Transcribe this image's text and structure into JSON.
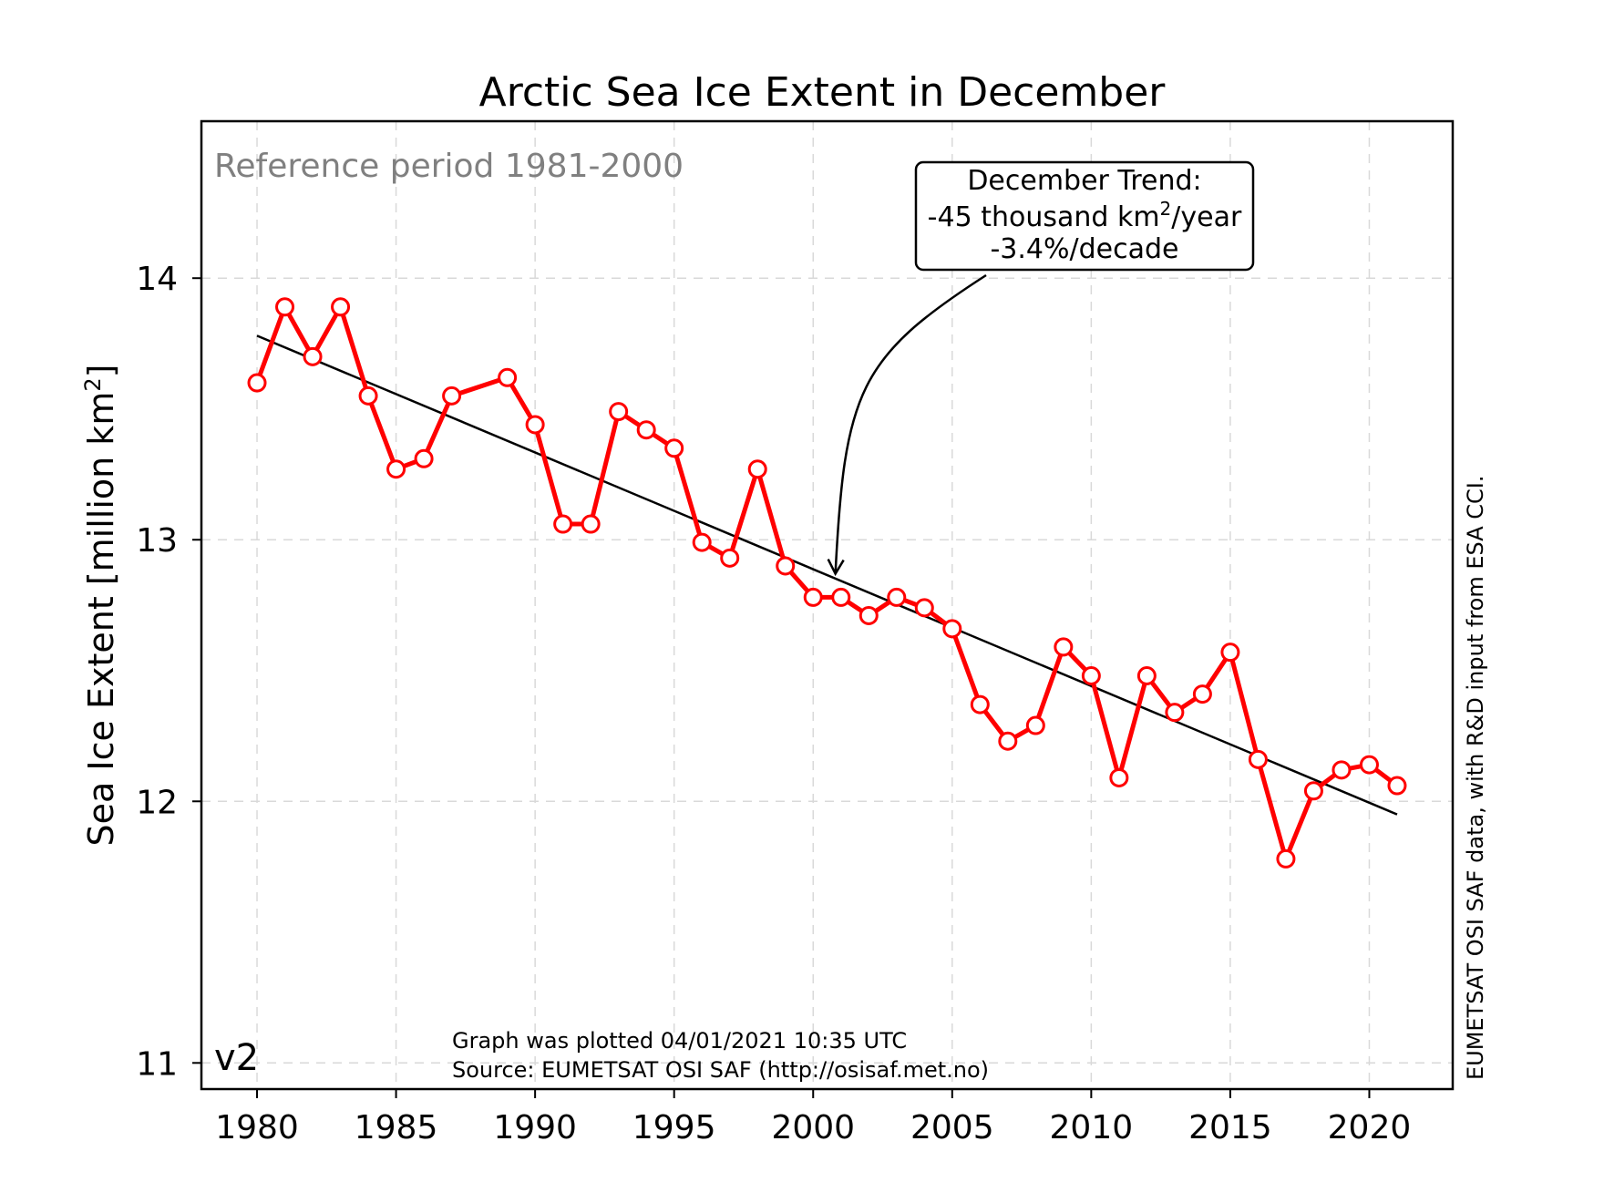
{
  "chart_data": {
    "type": "line",
    "title": "Arctic Sea Ice Extent in December",
    "xlabel": "",
    "ylabel": "Sea Ice Extent [million km²]",
    "xlim": [
      1978,
      2023
    ],
    "ylim": [
      10.9,
      14.6
    ],
    "x_ticks": [
      1980,
      1985,
      1990,
      1995,
      2000,
      2005,
      2010,
      2015,
      2020
    ],
    "y_ticks": [
      11,
      12,
      13,
      14
    ],
    "grid": true,
    "series": [
      {
        "color": "#ff0000",
        "marker": "open-circle",
        "x": [
          1980,
          1981,
          1982,
          1983,
          1984,
          1985,
          1986,
          1987,
          1989,
          1990,
          1991,
          1992,
          1993,
          1994,
          1995,
          1996,
          1997,
          1998,
          1999,
          2000,
          2001,
          2002,
          2003,
          2004,
          2005,
          2006,
          2007,
          2008,
          2009,
          2010,
          2011,
          2012,
          2013,
          2014,
          2015,
          2016,
          2017,
          2018,
          2019,
          2020,
          2021
        ],
        "values": [
          13.6,
          13.89,
          13.7,
          13.89,
          13.55,
          13.27,
          13.31,
          13.55,
          13.62,
          13.44,
          13.06,
          13.06,
          13.49,
          13.42,
          13.35,
          12.99,
          12.93,
          13.27,
          12.9,
          12.78,
          12.78,
          12.71,
          12.78,
          12.74,
          12.66,
          12.37,
          12.23,
          12.29,
          12.59,
          12.48,
          12.09,
          12.48,
          12.34,
          12.41,
          12.57,
          12.16,
          11.78,
          12.04,
          12.12,
          12.14,
          12.06
        ]
      },
      {
        "color": "#000000",
        "marker": "none",
        "x": [
          1980,
          2021
        ],
        "values": [
          13.78,
          11.95
        ]
      }
    ],
    "annotation": {
      "line1": "December Trend:",
      "line2_pre": "-45 thousand km",
      "line2_sup": "2",
      "line2_post": "/year",
      "line3": "-3.4%/decade",
      "arrow_target": [
        2000.8,
        12.87
      ]
    },
    "reference_text": "Reference period 1981-2000",
    "version_text": "v2",
    "plotted_text": "Graph was plotted 04/01/2021 10:35 UTC",
    "source_text": "Source: EUMETSAT OSI SAF (http://osisaf.met.no)",
    "side_text": "EUMETSAT OSI SAF data, with R&D input from ESA CCI.",
    "colors": {
      "series": "#ff0000",
      "trend": "#000000",
      "grid": "#d9d9d9",
      "reference": "#808080"
    }
  }
}
